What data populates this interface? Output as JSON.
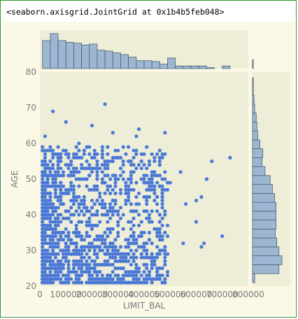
{
  "output_text": "<seaborn.axisgrid.JointGrid at 0x1b4b5feb048>",
  "colors": {
    "scatter": "#4a78d6",
    "hist_fill": "#9db7d3",
    "hist_edge": "#4c5f73",
    "axes_bg": "#eeeed8",
    "figure_bg": "#fbf8e6",
    "tick_text": "#7a7a7a"
  },
  "chart_data": {
    "type": "scatter",
    "title": "",
    "xlabel": "LIMIT_BAL",
    "ylabel": "AGE",
    "xlim": [
      0,
      800000
    ],
    "ylim": [
      20,
      80
    ],
    "x_ticks": [
      0,
      100000,
      200000,
      300000,
      400000,
      500000,
      600000,
      700000,
      800000
    ],
    "x_tick_labels": [
      "0",
      "100000",
      "200000",
      "300000",
      "400000",
      "500000",
      "600000",
      "700000",
      "800000"
    ],
    "y_ticks": [
      20,
      30,
      40,
      50,
      60,
      70,
      80
    ],
    "y_tick_labels": [
      "20",
      "30",
      "40",
      "50",
      "60",
      "70",
      "80"
    ],
    "grid": false,
    "notable_points": [
      {
        "x": 250000,
        "y": 71
      },
      {
        "x": 50000,
        "y": 69
      },
      {
        "x": 100000,
        "y": 66
      },
      {
        "x": 200000,
        "y": 65
      },
      {
        "x": 380000,
        "y": 64
      },
      {
        "x": 370000,
        "y": 62
      },
      {
        "x": 480000,
        "y": 63
      },
      {
        "x": 280000,
        "y": 63
      },
      {
        "x": 20000,
        "y": 62
      },
      {
        "x": 150000,
        "y": 60
      },
      {
        "x": 660000,
        "y": 55
      },
      {
        "x": 730000,
        "y": 56
      },
      {
        "x": 640000,
        "y": 50
      },
      {
        "x": 620000,
        "y": 45
      },
      {
        "x": 600000,
        "y": 44
      },
      {
        "x": 560000,
        "y": 43
      },
      {
        "x": 500000,
        "y": 49
      },
      {
        "x": 540000,
        "y": 52
      },
      {
        "x": 600000,
        "y": 38
      },
      {
        "x": 700000,
        "y": 34
      },
      {
        "x": 630000,
        "y": 32
      },
      {
        "x": 550000,
        "y": 32
      },
      {
        "x": 620000,
        "y": 31
      },
      {
        "x": 420000,
        "y": 24
      },
      {
        "x": 90000,
        "y": 21
      },
      {
        "x": 320000,
        "y": 22
      }
    ],
    "dense_region": {
      "x_range": [
        10000,
        500000
      ],
      "y_range": [
        21,
        60
      ],
      "density_peak": {
        "x": 60000,
        "y": 30
      }
    },
    "marginal_x_hist": {
      "bin_width": 30000,
      "bin_start": 10000,
      "counts": [
        32,
        40,
        32,
        30,
        29,
        27,
        28,
        21,
        20,
        18,
        16,
        13,
        9,
        9,
        8,
        5,
        12,
        3,
        3,
        3,
        3,
        1,
        0,
        3
      ]
    },
    "marginal_y_hist": {
      "bin_width": 2.5,
      "bin_start": 21,
      "counts": [
        3,
        36,
        40,
        36,
        33,
        31,
        32,
        32,
        32,
        30,
        27,
        24,
        17,
        13,
        14,
        10,
        7,
        6,
        5,
        3,
        2,
        1,
        1,
        0,
        1
      ]
    }
  }
}
